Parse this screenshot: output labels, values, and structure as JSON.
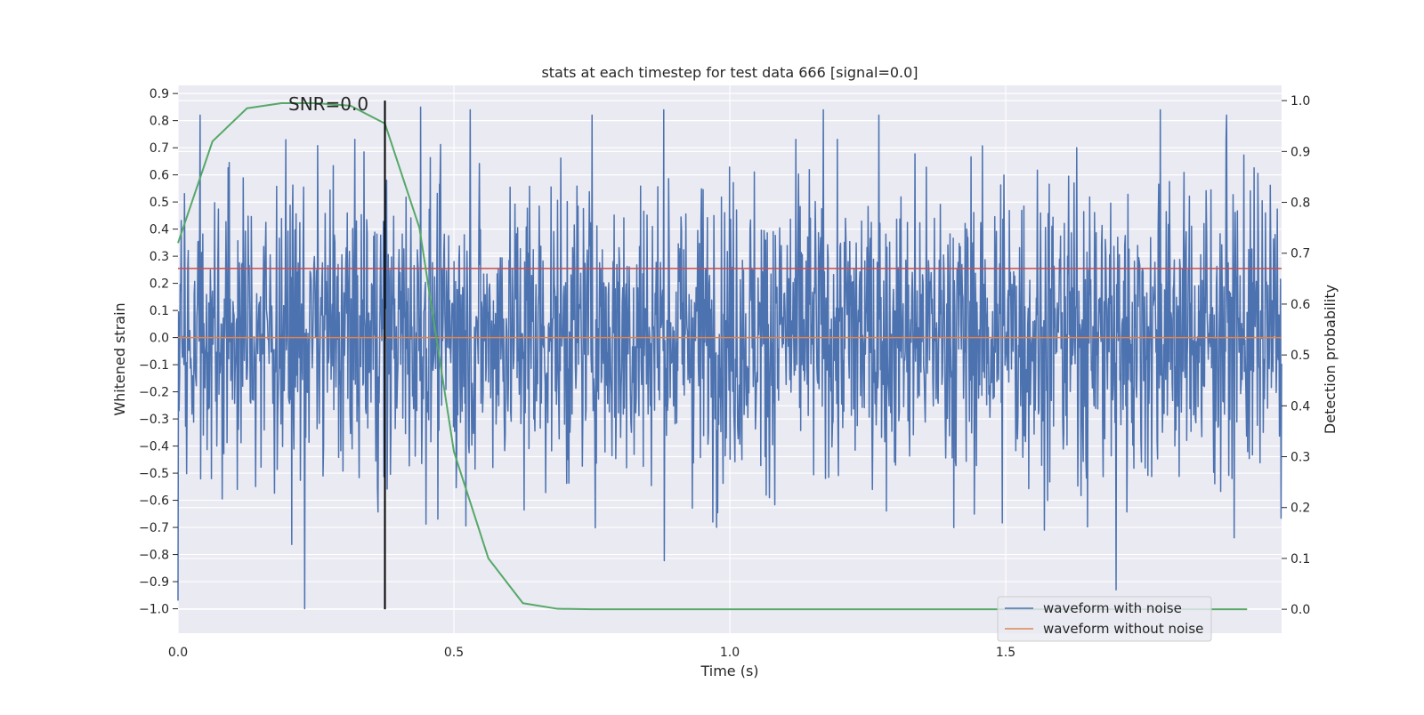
{
  "chart_data": {
    "type": "line",
    "title": "stats at each timestep for test data 666 [signal=0.0]",
    "xlabel": "Time (s)",
    "ylabel": "Whitened strain",
    "y2label": "Detection probability",
    "xlim": [
      0.0,
      2.0
    ],
    "ylim": [
      -1.09,
      0.93
    ],
    "y2lim": [
      -0.047,
      1.03
    ],
    "x_ticks": [
      "0.0",
      "0.5",
      "1.0",
      "1.5"
    ],
    "x_tick_values": [
      0.0,
      0.5,
      1.0,
      1.5
    ],
    "y_ticks": [
      "−1.0",
      "−0.9",
      "−0.8",
      "−0.7",
      "−0.6",
      "−0.5",
      "−0.4",
      "−0.3",
      "−0.2",
      "−0.1",
      "0.0",
      "0.1",
      "0.2",
      "0.3",
      "0.4",
      "0.5",
      "0.6",
      "0.7",
      "0.8",
      "0.9"
    ],
    "y_tick_values": [
      -1.0,
      -0.9,
      -0.8,
      -0.7,
      -0.6,
      -0.5,
      -0.4,
      -0.3,
      -0.2,
      -0.1,
      0.0,
      0.1,
      0.2,
      0.3,
      0.4,
      0.5,
      0.6,
      0.7,
      0.8,
      0.9
    ],
    "y2_ticks": [
      "0.0",
      "0.1",
      "0.2",
      "0.3",
      "0.4",
      "0.5",
      "0.6",
      "0.7",
      "0.8",
      "0.9",
      "1.0"
    ],
    "y2_tick_values": [
      0.0,
      0.1,
      0.2,
      0.3,
      0.4,
      0.5,
      0.6,
      0.7,
      0.8,
      0.9,
      1.0
    ],
    "grid": true,
    "legend_position": "bottom-right",
    "annotation": {
      "text": "SNR=0.0",
      "x": 0.2,
      "y": 0.87
    },
    "threshold_y": 0.67,
    "marker_x": 0.375,
    "series": [
      {
        "name": "waveform with noise",
        "color": "#4c72b0",
        "axis": "left",
        "note": "noisy strain signal sampled over 0–2 s, amplitude roughly within −1.0 to 0.86",
        "x_start": 0.0,
        "x_end": 2.0,
        "n_samples": 2048,
        "y_min": -1.0,
        "y_max": 0.86,
        "spikes": [
          {
            "x": 0.0,
            "y": -0.97
          },
          {
            "x": 0.04,
            "y": 0.82
          },
          {
            "x": 0.23,
            "y": -1.0
          },
          {
            "x": 0.44,
            "y": 0.85
          },
          {
            "x": 0.53,
            "y": 0.84
          },
          {
            "x": 0.75,
            "y": 0.82
          },
          {
            "x": 0.88,
            "y": 0.84
          },
          {
            "x": 1.17,
            "y": 0.84
          },
          {
            "x": 1.27,
            "y": 0.82
          },
          {
            "x": 1.7,
            "y": -0.93
          },
          {
            "x": 1.78,
            "y": 0.84
          },
          {
            "x": 1.9,
            "y": 0.82
          }
        ]
      },
      {
        "name": "waveform without noise",
        "color": "#dd8452",
        "axis": "left",
        "x": [
          0.0,
          2.0
        ],
        "values": [
          0.0,
          0.0
        ]
      },
      {
        "color": "#55a868",
        "axis": "right",
        "x": [
          0.0,
          0.0625,
          0.125,
          0.1875,
          0.25,
          0.3125,
          0.375,
          0.4375,
          0.5,
          0.5625,
          0.625,
          0.6875,
          0.75,
          0.8125,
          0.875,
          0.9375,
          1.0,
          1.0625,
          1.125,
          1.1875,
          1.25,
          1.3125,
          1.375,
          1.4375,
          1.5,
          1.5625,
          1.625,
          1.6875,
          1.75,
          1.8125,
          1.9375
        ],
        "values": [
          0.72,
          0.92,
          0.985,
          0.995,
          0.995,
          0.99,
          0.955,
          0.75,
          0.31,
          0.1,
          0.012,
          0.001,
          0.0,
          0.0,
          0.0,
          0.0,
          0.0,
          0.0,
          0.0,
          0.0,
          0.0,
          0.0,
          0.0,
          0.0,
          0.0,
          0.0,
          0.0,
          0.0,
          0.0,
          0.0,
          0.0
        ]
      }
    ]
  }
}
